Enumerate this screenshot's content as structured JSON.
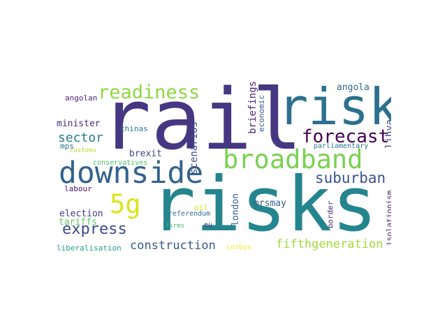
{
  "words": [
    {
      "text": "rail",
      "color": "#453781"
    },
    {
      "text": "risks",
      "color": "#25858e"
    },
    {
      "text": "risk",
      "color": "#2d708e"
    },
    {
      "text": "downside",
      "color": "#33628d"
    },
    {
      "text": "broadband",
      "color": "#7ad151"
    },
    {
      "text": "readiness",
      "color": "#8fd744"
    },
    {
      "text": "forecast",
      "color": "#440154"
    },
    {
      "text": "suburban",
      "color": "#3b528b"
    },
    {
      "text": "5g",
      "color": "#dde318"
    },
    {
      "text": "express",
      "color": "#3e4a89"
    },
    {
      "text": "construction",
      "color": "#38598c"
    },
    {
      "text": "fifthgeneration",
      "color": "#a0da39"
    },
    {
      "text": "sector",
      "color": "#287c8e"
    },
    {
      "text": "minister",
      "color": "#46307e"
    },
    {
      "text": "brexit",
      "color": "#3f4788"
    },
    {
      "text": "scenarios",
      "color": "#3e4989"
    },
    {
      "text": "briefings",
      "color": "#481f70"
    },
    {
      "text": "economic",
      "color": "#39568c"
    },
    {
      "text": "angola",
      "color": "#31688e"
    },
    {
      "text": "angolan",
      "color": "#482677"
    },
    {
      "text": "chinas",
      "color": "#2a788e"
    },
    {
      "text": "mps",
      "color": "#2c718e"
    },
    {
      "text": "customs",
      "color": "#b8de29"
    },
    {
      "text": "conservatives",
      "color": "#4ac16d"
    },
    {
      "text": "libya",
      "color": "#3f4889"
    },
    {
      "text": "parliamentary",
      "color": "#2a788e"
    },
    {
      "text": "london",
      "color": "#355f8d"
    },
    {
      "text": "mrsmay",
      "color": "#355e8d"
    },
    {
      "text": "labour",
      "color": "#471365"
    },
    {
      "text": "election",
      "color": "#443a83"
    },
    {
      "text": "tariffs",
      "color": "#5ec962"
    },
    {
      "text": "oil",
      "color": "#d8e219"
    },
    {
      "text": "referendum",
      "color": "#2e6f8e"
    },
    {
      "text": "firms",
      "color": "#3dbc74"
    },
    {
      "text": "eu",
      "color": "#46337e"
    },
    {
      "text": "border",
      "color": "#472d7b"
    },
    {
      "text": "isolationism",
      "color": "#481b6d"
    },
    {
      "text": "liberalisation",
      "color": "#1fa187"
    },
    {
      "text": "corbyn",
      "color": "#fde725"
    }
  ]
}
